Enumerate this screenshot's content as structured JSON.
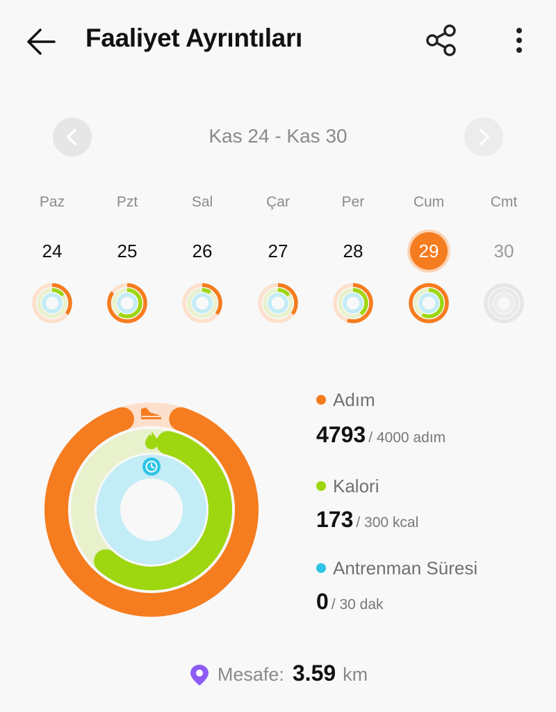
{
  "header": {
    "title": "Faaliyet Ayrıntıları",
    "back_icon": "arrow-left-icon",
    "share_icon": "share-icon",
    "menu_icon": "more-vertical-icon"
  },
  "week_nav": {
    "range": "Kas 24 - Kas 30",
    "prev_icon": "chevron-left-icon",
    "next_icon": "chevron-right-icon"
  },
  "days": [
    {
      "name": "Paz",
      "date": "24",
      "steps": 0.35,
      "calories": 0.15,
      "training": 0.0
    },
    {
      "name": "Pzt",
      "date": "25",
      "steps": 0.85,
      "calories": 0.6,
      "training": 0.0
    },
    {
      "name": "Sal",
      "date": "26",
      "steps": 0.35,
      "calories": 0.1,
      "training": 0.0
    },
    {
      "name": "Çar",
      "date": "27",
      "steps": 0.35,
      "calories": 0.15,
      "training": 0.0
    },
    {
      "name": "Per",
      "date": "28",
      "steps": 0.55,
      "calories": 0.4,
      "training": 0.0
    },
    {
      "name": "Cum",
      "date": "29",
      "steps": 1.0,
      "calories": 0.58,
      "training": 0.0,
      "selected": true
    },
    {
      "name": "Cmt",
      "date": "30",
      "steps": 0.0,
      "calories": 0.0,
      "training": 0.0,
      "future": true
    }
  ],
  "stats": {
    "steps": {
      "label": "Adım",
      "value": "4793",
      "goal": "/ 4000 adım",
      "color": "#f57c1f",
      "icon": "shoe-icon"
    },
    "calories": {
      "label": "Kalori",
      "value": "173",
      "goal": "/ 300 kcal",
      "color": "#9ed60f",
      "icon": "flame-icon"
    },
    "training": {
      "label": "Antrenman Süresi",
      "value": "0",
      "goal": "/ 30 dak",
      "color": "#2ec4e6",
      "icon": "clock-icon"
    }
  },
  "distance": {
    "label": "Mesafe:",
    "value": "3.59",
    "unit": "km",
    "icon": "location-pin-icon"
  },
  "colors": {
    "steps_track": "#fde0cc",
    "calories_track": "#e8f1cc",
    "training_track": "#c2ecf6",
    "selected_day": "#f57c1f"
  }
}
